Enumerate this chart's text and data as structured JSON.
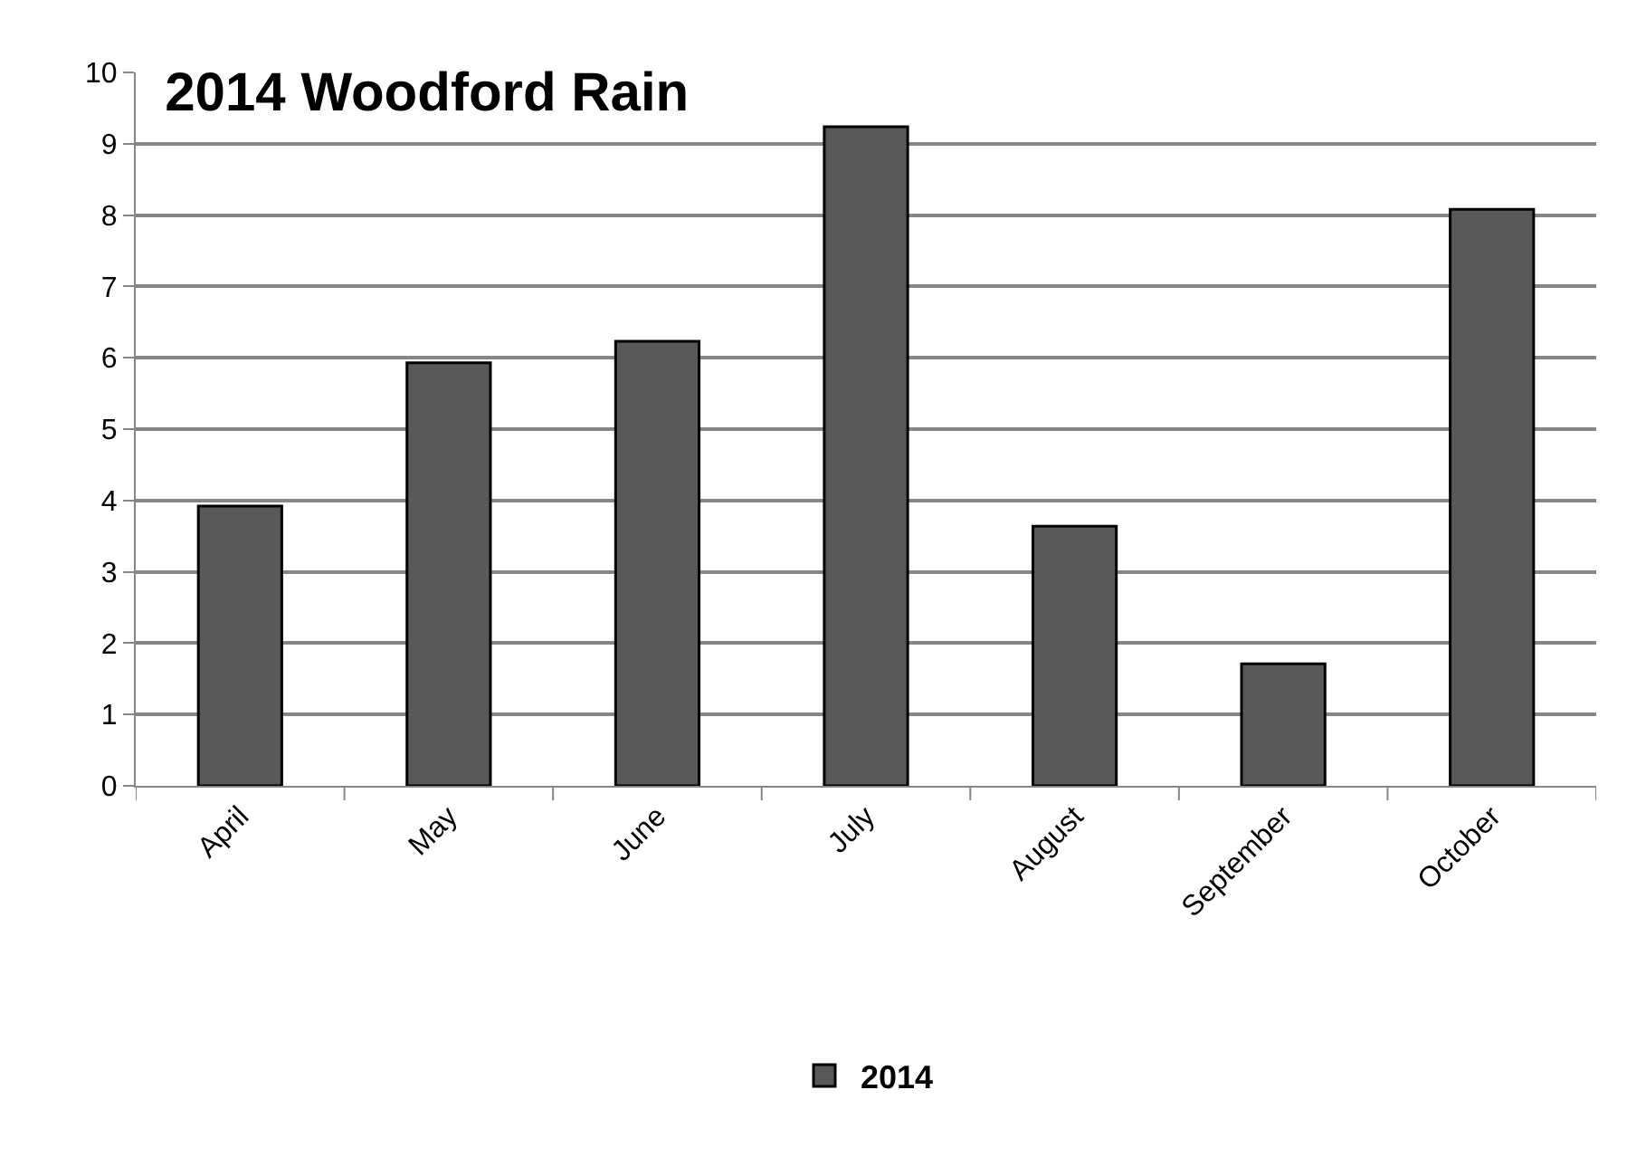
{
  "chart_data": {
    "type": "bar",
    "title": "2014 Woodford Rain",
    "categories": [
      "April",
      "May",
      "June",
      "July",
      "August",
      "September",
      "October"
    ],
    "series": [
      {
        "name": "2014",
        "color": "#595959",
        "values": [
          3.92,
          5.93,
          6.23,
          9.24,
          3.64,
          1.71,
          8.08
        ]
      }
    ],
    "ylim": [
      0,
      10
    ],
    "yticks": [
      0,
      1,
      2,
      3,
      4,
      5,
      6,
      7,
      8,
      9,
      10
    ],
    "grid": "y",
    "legend": "bottom"
  }
}
